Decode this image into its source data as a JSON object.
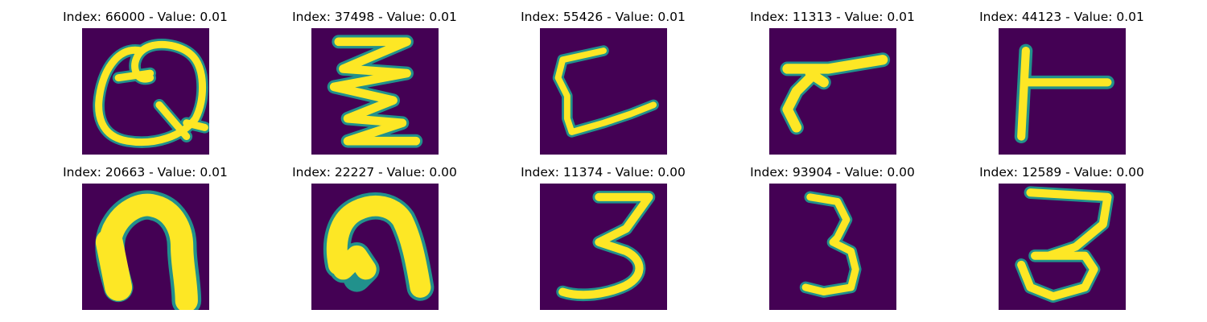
{
  "colors": {
    "background": "#440154",
    "stroke": "#fde725",
    "edge": "#21918c",
    "edge_light": "#5ec962"
  },
  "panels": [
    {
      "title": "Index: 66000 - Value: 0.01",
      "glyph": "handwritten-loop-q"
    },
    {
      "title": "Index: 37498 - Value: 0.01",
      "glyph": "handwritten-zigzag"
    },
    {
      "title": "Index: 55426 - Value: 0.01",
      "glyph": "handwritten-l-shape"
    },
    {
      "title": "Index: 11313 - Value: 0.01",
      "glyph": "handwritten-slanted-seven"
    },
    {
      "title": "Index: 44123 - Value: 0.01",
      "glyph": "handwritten-t-rotated"
    },
    {
      "title": "Index: 20663 - Value: 0.01",
      "glyph": "handwritten-arch"
    },
    {
      "title": "Index: 22227 - Value: 0.00",
      "glyph": "handwritten-arch"
    },
    {
      "title": "Index: 11374 - Value: 0.00",
      "glyph": "handwritten-three"
    },
    {
      "title": "Index: 93904 - Value: 0.00",
      "glyph": "handwritten-three"
    },
    {
      "title": "Index: 12589 - Value: 0.00",
      "glyph": "handwritten-three"
    }
  ]
}
